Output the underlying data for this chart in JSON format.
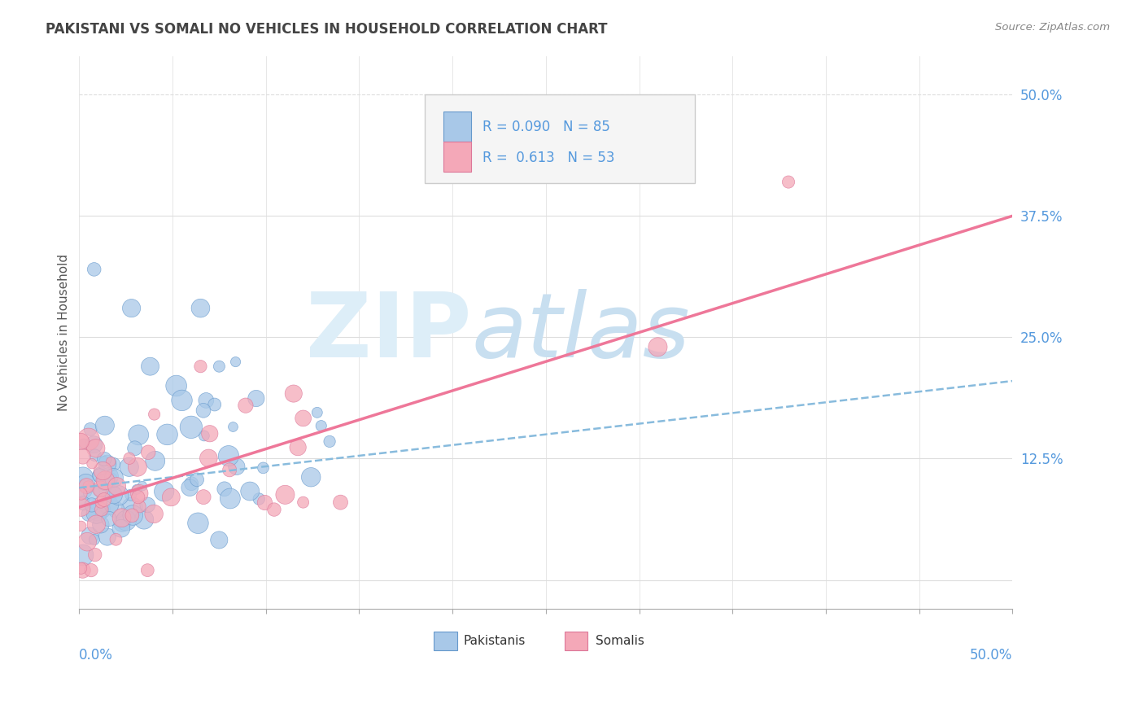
{
  "title": "PAKISTANI VS SOMALI NO VEHICLES IN HOUSEHOLD CORRELATION CHART",
  "source": "Source: ZipAtlas.com",
  "ylabel": "No Vehicles in Household",
  "xlim": [
    0.0,
    0.5
  ],
  "ylim": [
    -0.03,
    0.54
  ],
  "R_pakistani": 0.09,
  "N_pakistani": 85,
  "R_somali": 0.613,
  "N_somali": 53,
  "color_pakistani": "#a8c8e8",
  "color_somali": "#f4a8b8",
  "edge_pakistani": "#6699cc",
  "edge_somali": "#dd7799",
  "trendline_pakistani_color": "#88bbdd",
  "trendline_somali_color": "#ee7799",
  "watermark_zip": "ZIP",
  "watermark_atlas": "atlas",
  "watermark_color_zip": "#ddeef8",
  "watermark_color_atlas": "#c8dff0",
  "title_color": "#444444",
  "source_color": "#888888",
  "axis_label_color": "#5599dd",
  "ytick_vals": [
    0.0,
    0.125,
    0.25,
    0.375,
    0.5
  ],
  "ytick_labels": [
    "",
    "12.5%",
    "25.0%",
    "37.5%",
    "50.0%"
  ],
  "grid_color": "#dddddd",
  "legend_facecolor": "#f5f5f5",
  "legend_edgecolor": "#cccccc"
}
